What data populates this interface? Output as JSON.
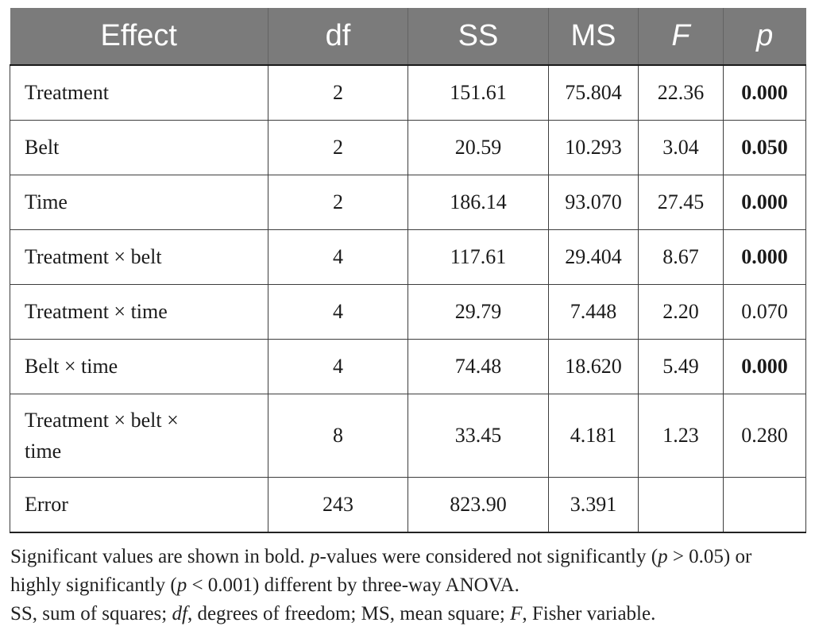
{
  "colors": {
    "header_bg": "#7b7b7b",
    "header_text": "#ffffff",
    "border": "#3d3d3d",
    "text": "#1b1b1b"
  },
  "table": {
    "columns": [
      {
        "key": "effect",
        "label": "Effect",
        "italic": false
      },
      {
        "key": "df",
        "label": "df",
        "italic": false
      },
      {
        "key": "ss",
        "label": "SS",
        "italic": false
      },
      {
        "key": "ms",
        "label": "MS",
        "italic": false
      },
      {
        "key": "f",
        "label": "F",
        "italic": true
      },
      {
        "key": "p",
        "label": "p",
        "italic": true
      }
    ],
    "rows": [
      {
        "effect": "Treatment",
        "df": "2",
        "ss": "151.61",
        "ms": "75.804",
        "f": "22.36",
        "p": "0.000",
        "p_bold": true,
        "tall": false
      },
      {
        "effect": "Belt",
        "df": "2",
        "ss": "20.59",
        "ms": "10.293",
        "f": "3.04",
        "p": "0.050",
        "p_bold": true,
        "tall": false
      },
      {
        "effect": "Time",
        "df": "2",
        "ss": "186.14",
        "ms": "93.070",
        "f": "27.45",
        "p": "0.000",
        "p_bold": true,
        "tall": false
      },
      {
        "effect": "Treatment × belt",
        "df": "4",
        "ss": "117.61",
        "ms": "29.404",
        "f": "8.67",
        "p": "0.000",
        "p_bold": true,
        "tall": false
      },
      {
        "effect": "Treatment × time",
        "df": "4",
        "ss": "29.79",
        "ms": "7.448",
        "f": "2.20",
        "p": "0.070",
        "p_bold": false,
        "tall": false
      },
      {
        "effect": "Belt × time",
        "df": "4",
        "ss": "74.48",
        "ms": "18.620",
        "f": "5.49",
        "p": "0.000",
        "p_bold": true,
        "tall": false
      },
      {
        "effect": "Treatment × belt ×\ntime",
        "df": "8",
        "ss": "33.45",
        "ms": "4.181",
        "f": "1.23",
        "p": "0.280",
        "p_bold": false,
        "tall": true
      },
      {
        "effect": "Error",
        "df": "243",
        "ss": "823.90",
        "ms": "3.391",
        "f": "",
        "p": "",
        "p_bold": false,
        "tall": false
      }
    ]
  },
  "footnotes": {
    "lines": [
      [
        {
          "t": "Significant values are shown in bold. "
        },
        {
          "t": "p",
          "i": true
        },
        {
          "t": "-values were considered not significantly ("
        },
        {
          "t": "p",
          "i": true
        },
        {
          "t": " > 0.05) or"
        }
      ],
      [
        {
          "t": "highly significantly ("
        },
        {
          "t": "p",
          "i": true
        },
        {
          "t": " < 0.001) different by three-way ANOVA."
        }
      ],
      [
        {
          "t": "SS, sum of squares; "
        },
        {
          "t": "df",
          "i": true
        },
        {
          "t": ", degrees of freedom; MS, mean square; "
        },
        {
          "t": "F",
          "i": true
        },
        {
          "t": ", Fisher variable."
        }
      ]
    ]
  }
}
